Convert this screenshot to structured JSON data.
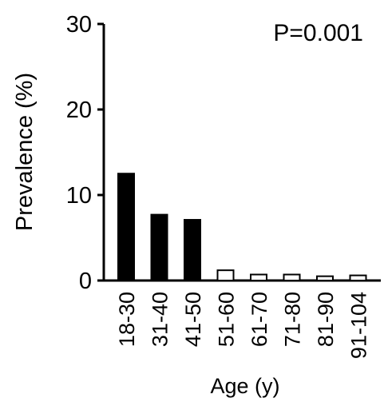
{
  "chart_data": {
    "type": "bar",
    "annotation": "P=0.001",
    "xlabel": "Age (y)",
    "ylabel": "Prevalence (%)",
    "ylim": [
      0,
      30
    ],
    "yticks": [
      "0",
      "10",
      "20",
      "30"
    ],
    "categories": [
      "18-30",
      "31-40",
      "41-50",
      "51-60",
      "61-70",
      "71-80",
      "81-90",
      "91-104"
    ],
    "values": [
      12.5,
      7.7,
      7.1,
      1.2,
      0.7,
      0.7,
      0.5,
      0.6
    ],
    "fills": [
      "#000000",
      "#000000",
      "#000000",
      "#ffffff",
      "#ffffff",
      "#ffffff",
      "#ffffff",
      "#ffffff"
    ],
    "bar_stroke": "#000000",
    "axis_color": "#000000",
    "grid": false,
    "legend": false
  }
}
